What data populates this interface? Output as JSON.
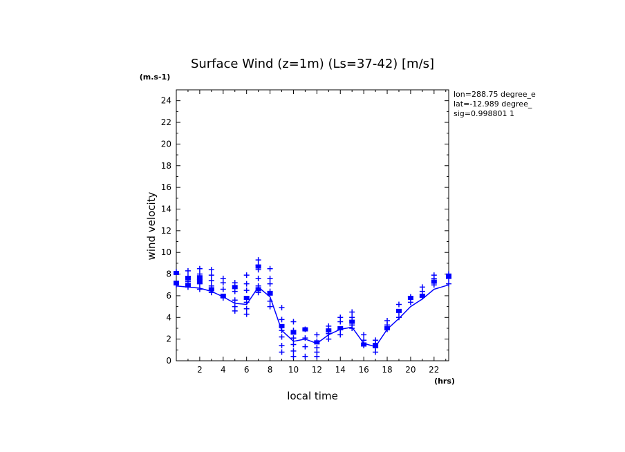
{
  "chart_data": {
    "type": "scatter",
    "title": "Surface Wind (z=1m) (Ls=37-42) [m/s]",
    "xlabel": "local time",
    "ylabel": "wind velocity",
    "x_unit": "(hrs)",
    "y_unit": "(m.s-1)",
    "xlim": [
      0,
      23.25
    ],
    "ylim": [
      0,
      25
    ],
    "x_ticks": [
      2,
      4,
      6,
      8,
      10,
      12,
      14,
      16,
      18,
      20,
      22
    ],
    "y_ticks": [
      0,
      2,
      4,
      6,
      8,
      10,
      12,
      14,
      16,
      18,
      20,
      22,
      24
    ],
    "grid": false,
    "info": [
      "lon=288.75 degree_e",
      "lat=-12.989 degree_",
      "sig=0.998801 1"
    ],
    "colors": {
      "series": "#0000ff",
      "axis": "#000000"
    },
    "series": [
      {
        "kind": "line",
        "x": [
          0.0,
          1.0,
          2.0,
          3.0,
          4.0,
          5.0,
          6.0,
          7.0,
          8.0,
          9.0,
          10.0,
          11.0,
          12.0,
          13.0,
          14.0,
          15.0,
          16.0,
          17.0,
          18.0,
          19.0,
          20.0,
          21.0,
          22.0,
          23.25
        ],
        "y": [
          6.9,
          6.8,
          6.7,
          6.4,
          5.9,
          5.3,
          5.2,
          6.8,
          5.9,
          2.8,
          1.8,
          2.0,
          1.6,
          2.4,
          2.9,
          3.1,
          1.6,
          1.3,
          2.9,
          3.9,
          5.0,
          5.7,
          6.6,
          7.0
        ]
      },
      {
        "kind": "squares",
        "x": [
          0.0,
          0.0,
          1.0,
          1.0,
          2.0,
          2.0,
          3.0,
          4.0,
          5.0,
          6.0,
          7.0,
          7.0,
          8.0,
          9.0,
          10.0,
          11.0,
          12.0,
          13.0,
          14.0,
          15.0,
          16.0,
          17.0,
          18.0,
          19.0,
          20.0,
          21.0,
          22.0,
          23.25
        ],
        "y": [
          8.1,
          7.2,
          7.6,
          7.0,
          7.7,
          7.3,
          6.6,
          6.0,
          6.8,
          5.8,
          8.7,
          6.6,
          6.2,
          3.2,
          2.6,
          2.9,
          1.7,
          2.8,
          3.0,
          3.6,
          1.5,
          1.4,
          3.0,
          4.6,
          5.8,
          6.0,
          7.3,
          7.8
        ]
      },
      {
        "kind": "crosses",
        "points": [
          [
            0.0,
            8.2
          ],
          [
            0.0,
            7.0
          ],
          [
            1.0,
            8.3
          ],
          [
            1.0,
            7.8
          ],
          [
            1.0,
            7.3
          ],
          [
            1.0,
            6.8
          ],
          [
            2.0,
            8.5
          ],
          [
            2.0,
            8.0
          ],
          [
            2.0,
            7.5
          ],
          [
            2.0,
            7.1
          ],
          [
            2.0,
            6.6
          ],
          [
            3.0,
            8.4
          ],
          [
            3.0,
            7.9
          ],
          [
            3.0,
            7.4
          ],
          [
            3.0,
            6.9
          ],
          [
            3.0,
            6.3
          ],
          [
            4.0,
            7.6
          ],
          [
            4.0,
            7.2
          ],
          [
            4.0,
            6.6
          ],
          [
            4.0,
            5.8
          ],
          [
            5.0,
            7.2
          ],
          [
            5.0,
            6.4
          ],
          [
            5.0,
            5.6
          ],
          [
            5.0,
            5.0
          ],
          [
            5.0,
            4.6
          ],
          [
            6.0,
            7.9
          ],
          [
            6.0,
            7.1
          ],
          [
            6.0,
            6.5
          ],
          [
            6.0,
            5.4
          ],
          [
            6.0,
            4.8
          ],
          [
            6.0,
            4.3
          ],
          [
            7.0,
            9.3
          ],
          [
            7.0,
            8.8
          ],
          [
            7.0,
            8.4
          ],
          [
            7.0,
            7.6
          ],
          [
            7.0,
            6.9
          ],
          [
            7.0,
            6.3
          ],
          [
            8.0,
            8.5
          ],
          [
            8.0,
            7.6
          ],
          [
            8.0,
            7.1
          ],
          [
            8.0,
            6.4
          ],
          [
            8.0,
            5.5
          ],
          [
            8.0,
            5.0
          ],
          [
            9.0,
            4.9
          ],
          [
            9.0,
            3.8
          ],
          [
            9.0,
            2.8
          ],
          [
            9.0,
            2.2
          ],
          [
            9.0,
            1.4
          ],
          [
            9.0,
            0.8
          ],
          [
            10.0,
            3.6
          ],
          [
            10.0,
            2.8
          ],
          [
            10.0,
            2.1
          ],
          [
            10.0,
            1.5
          ],
          [
            10.0,
            0.9
          ],
          [
            10.0,
            0.4
          ],
          [
            11.0,
            2.9
          ],
          [
            11.0,
            2.1
          ],
          [
            11.0,
            1.3
          ],
          [
            11.0,
            0.4
          ],
          [
            12.0,
            2.4
          ],
          [
            12.0,
            1.8
          ],
          [
            12.0,
            1.2
          ],
          [
            12.0,
            0.8
          ],
          [
            12.0,
            0.4
          ],
          [
            13.0,
            3.2
          ],
          [
            13.0,
            2.5
          ],
          [
            13.0,
            2.0
          ],
          [
            14.0,
            4.0
          ],
          [
            14.0,
            3.6
          ],
          [
            14.0,
            2.9
          ],
          [
            14.0,
            2.4
          ],
          [
            15.0,
            4.5
          ],
          [
            15.0,
            4.0
          ],
          [
            15.0,
            3.3
          ],
          [
            15.0,
            3.0
          ],
          [
            16.0,
            2.4
          ],
          [
            16.0,
            1.9
          ],
          [
            16.0,
            1.4
          ],
          [
            17.0,
            1.9
          ],
          [
            17.0,
            1.6
          ],
          [
            17.0,
            1.2
          ],
          [
            17.0,
            0.8
          ],
          [
            18.0,
            3.7
          ],
          [
            18.0,
            3.3
          ],
          [
            18.0,
            2.9
          ],
          [
            19.0,
            5.2
          ],
          [
            19.0,
            4.5
          ],
          [
            19.0,
            4.0
          ],
          [
            20.0,
            5.9
          ],
          [
            20.0,
            5.4
          ],
          [
            21.0,
            6.8
          ],
          [
            21.0,
            6.4
          ],
          [
            21.0,
            5.9
          ],
          [
            22.0,
            7.9
          ],
          [
            22.0,
            7.6
          ],
          [
            22.0,
            7.0
          ],
          [
            23.25,
            8.0
          ],
          [
            23.25,
            7.6
          ],
          [
            23.25,
            7.1
          ]
        ]
      }
    ]
  }
}
